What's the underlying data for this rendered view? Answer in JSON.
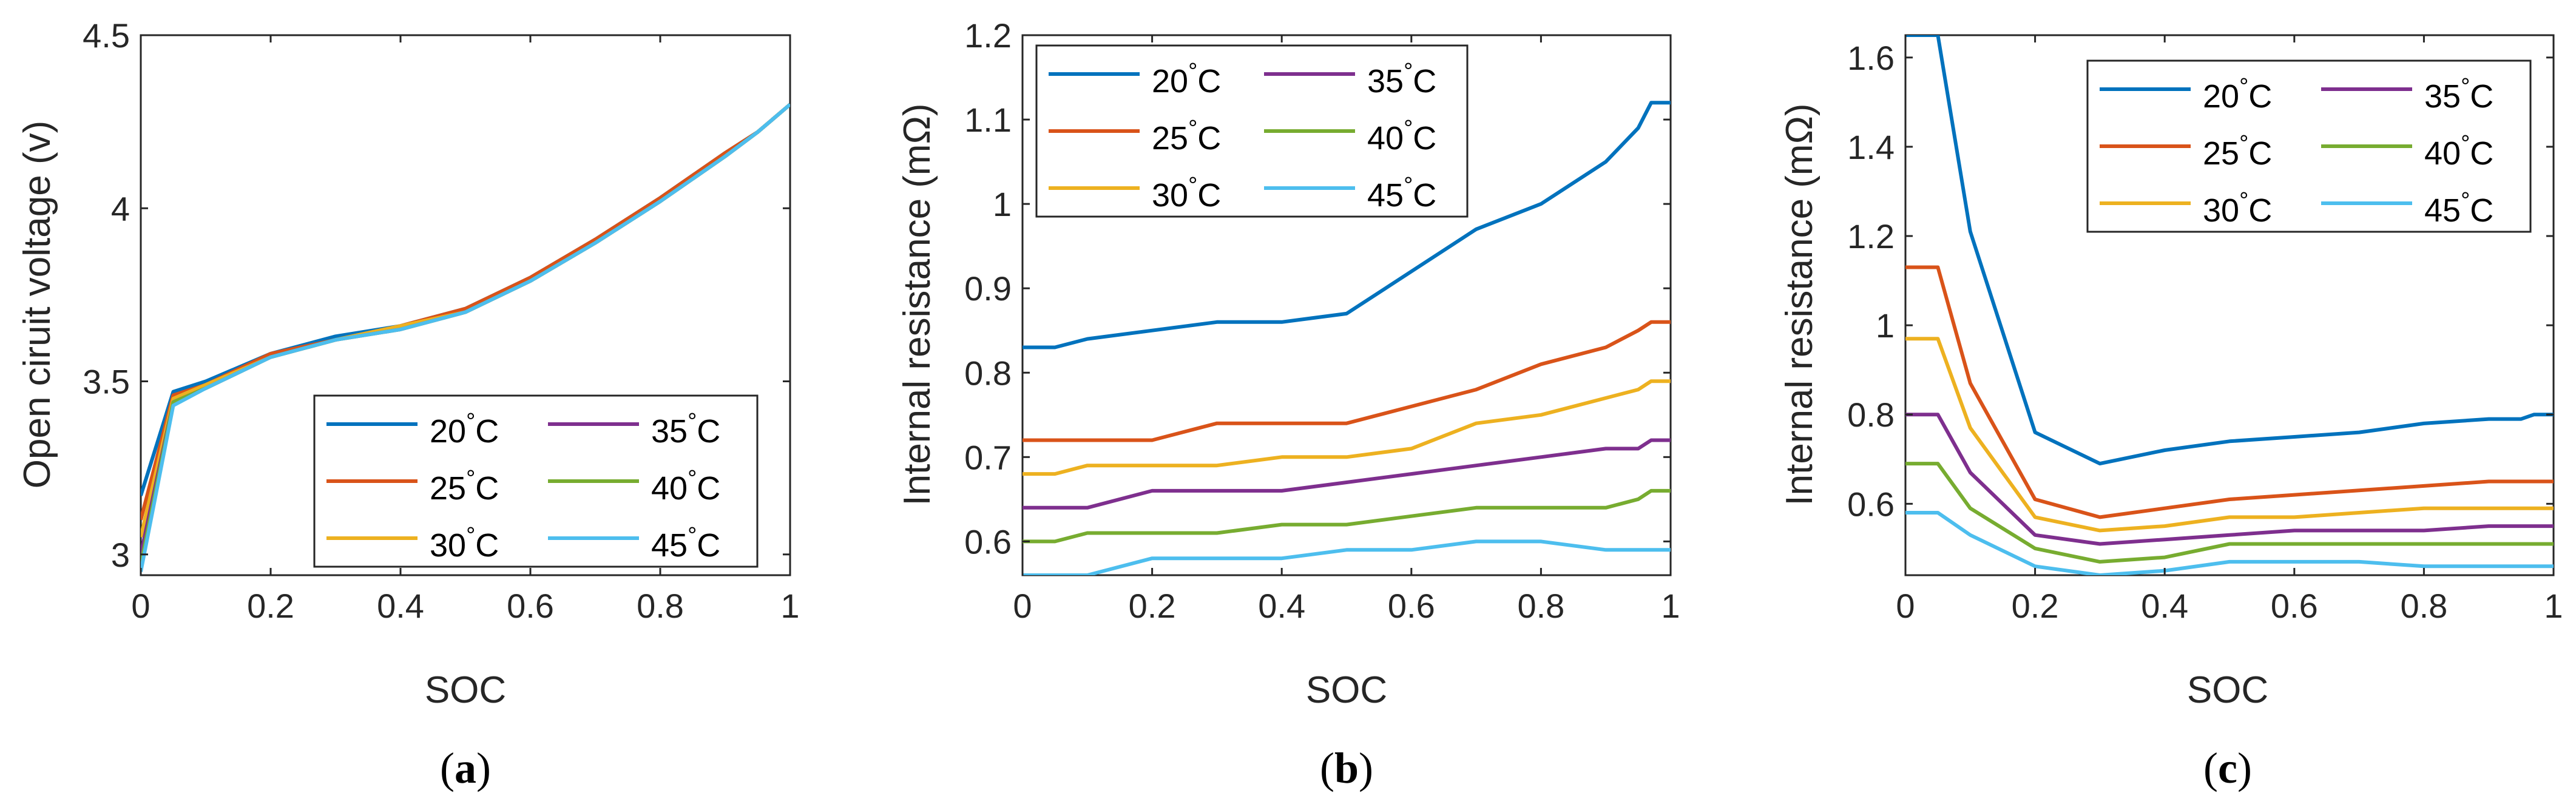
{
  "figure": {
    "caption_open": "(",
    "caption_close": ")",
    "degree_symbol": "°"
  },
  "chart_data": [
    {
      "type": "line",
      "panel": "a",
      "caption": "a",
      "title": "",
      "xlabel": "SOC",
      "ylabel": "Open ciruit voltage (v)",
      "xlim": [
        0,
        1
      ],
      "ylim": [
        2.94,
        4.5
      ],
      "xticks": [
        0,
        0.2,
        0.4,
        0.6,
        0.8,
        1
      ],
      "xtick_labels": [
        "0",
        "0.2",
        "0.4",
        "0.6",
        "0.8",
        "1"
      ],
      "yticks": [
        3,
        3.5,
        4,
        4.5
      ],
      "ytick_labels": [
        "3",
        "3.5",
        "4",
        "4.5"
      ],
      "legend_placement": "bottom-right",
      "series": [
        {
          "name": "20",
          "color": "#0072BD",
          "x": [
            0,
            0.05,
            0.1,
            0.2,
            0.3,
            0.4,
            0.5,
            0.6,
            0.7,
            0.8,
            0.9,
            0.95,
            1
          ],
          "values": [
            3.17,
            3.47,
            3.5,
            3.58,
            3.63,
            3.66,
            3.71,
            3.8,
            3.91,
            4.03,
            4.16,
            4.22,
            4.3
          ]
        },
        {
          "name": "25",
          "color": "#D95319",
          "x": [
            0,
            0.05,
            0.1,
            0.2,
            0.3,
            0.4,
            0.5,
            0.6,
            0.7,
            0.8,
            0.9,
            0.95,
            1
          ],
          "values": [
            3.1,
            3.46,
            3.49,
            3.58,
            3.62,
            3.66,
            3.71,
            3.8,
            3.91,
            4.03,
            4.16,
            4.22,
            4.3
          ]
        },
        {
          "name": "30",
          "color": "#EDB120",
          "x": [
            0,
            0.05,
            0.1,
            0.2,
            0.3,
            0.4,
            0.5,
            0.6,
            0.7,
            0.8,
            0.9,
            0.95,
            1
          ],
          "values": [
            3.05,
            3.45,
            3.49,
            3.57,
            3.62,
            3.66,
            3.7,
            3.79,
            3.9,
            4.02,
            4.15,
            4.22,
            4.3
          ]
        },
        {
          "name": "35",
          "color": "#7E2F8E",
          "x": [
            0,
            0.05,
            0.1,
            0.2,
            0.3,
            0.4,
            0.5,
            0.6,
            0.7,
            0.8,
            0.9,
            0.95,
            1
          ],
          "values": [
            3.0,
            3.44,
            3.48,
            3.57,
            3.62,
            3.65,
            3.7,
            3.79,
            3.9,
            4.02,
            4.15,
            4.22,
            4.3
          ]
        },
        {
          "name": "40",
          "color": "#77AC30",
          "x": [
            0,
            0.05,
            0.1,
            0.2,
            0.3,
            0.4,
            0.5,
            0.6,
            0.7,
            0.8,
            0.9,
            0.95,
            1
          ],
          "values": [
            2.97,
            3.44,
            3.48,
            3.57,
            3.62,
            3.65,
            3.7,
            3.79,
            3.9,
            4.02,
            4.15,
            4.22,
            4.3
          ]
        },
        {
          "name": "45",
          "color": "#4DBEEE",
          "x": [
            0,
            0.05,
            0.1,
            0.2,
            0.3,
            0.4,
            0.5,
            0.6,
            0.7,
            0.8,
            0.9,
            0.95,
            1
          ],
          "values": [
            2.95,
            3.43,
            3.48,
            3.57,
            3.62,
            3.65,
            3.7,
            3.79,
            3.9,
            4.02,
            4.15,
            4.22,
            4.3
          ]
        }
      ]
    },
    {
      "type": "line",
      "panel": "b",
      "caption": "b",
      "title": "",
      "xlabel": "SOC",
      "ylabel": "Internal resistance (mΩ)",
      "xlim": [
        0,
        1
      ],
      "ylim": [
        0.56,
        1.2
      ],
      "xticks": [
        0,
        0.2,
        0.4,
        0.6,
        0.8,
        1
      ],
      "xtick_labels": [
        "0",
        "0.2",
        "0.4",
        "0.6",
        "0.8",
        "1"
      ],
      "yticks": [
        0.6,
        0.7,
        0.8,
        0.9,
        1.0,
        1.1,
        1.2
      ],
      "ytick_labels": [
        "0.6",
        "0.7",
        "0.8",
        "0.9",
        "1",
        "1.1",
        "1.2"
      ],
      "legend_placement": "top-left",
      "series": [
        {
          "name": "20",
          "color": "#0072BD",
          "x": [
            0,
            0.05,
            0.1,
            0.2,
            0.3,
            0.4,
            0.5,
            0.6,
            0.7,
            0.8,
            0.9,
            0.95,
            0.97,
            1
          ],
          "values": [
            0.83,
            0.83,
            0.84,
            0.85,
            0.86,
            0.86,
            0.87,
            0.92,
            0.97,
            1.0,
            1.05,
            1.09,
            1.12,
            1.12
          ]
        },
        {
          "name": "25",
          "color": "#D95319",
          "x": [
            0,
            0.05,
            0.1,
            0.2,
            0.3,
            0.4,
            0.5,
            0.6,
            0.7,
            0.8,
            0.9,
            0.95,
            0.97,
            1
          ],
          "values": [
            0.72,
            0.72,
            0.72,
            0.72,
            0.74,
            0.74,
            0.74,
            0.76,
            0.78,
            0.81,
            0.83,
            0.85,
            0.86,
            0.86
          ]
        },
        {
          "name": "30",
          "color": "#EDB120",
          "x": [
            0,
            0.05,
            0.1,
            0.2,
            0.3,
            0.4,
            0.5,
            0.6,
            0.7,
            0.8,
            0.9,
            0.95,
            0.97,
            1
          ],
          "values": [
            0.68,
            0.68,
            0.69,
            0.69,
            0.69,
            0.7,
            0.7,
            0.71,
            0.74,
            0.75,
            0.77,
            0.78,
            0.79,
            0.79
          ]
        },
        {
          "name": "35",
          "color": "#7E2F8E",
          "x": [
            0,
            0.05,
            0.1,
            0.2,
            0.3,
            0.4,
            0.5,
            0.6,
            0.7,
            0.8,
            0.9,
            0.95,
            0.97,
            1
          ],
          "values": [
            0.64,
            0.64,
            0.64,
            0.66,
            0.66,
            0.66,
            0.67,
            0.68,
            0.69,
            0.7,
            0.71,
            0.71,
            0.72,
            0.72
          ]
        },
        {
          "name": "40",
          "color": "#77AC30",
          "x": [
            0,
            0.05,
            0.1,
            0.2,
            0.3,
            0.4,
            0.5,
            0.6,
            0.7,
            0.8,
            0.9,
            0.95,
            0.97,
            1
          ],
          "values": [
            0.6,
            0.6,
            0.61,
            0.61,
            0.61,
            0.62,
            0.62,
            0.63,
            0.64,
            0.64,
            0.64,
            0.65,
            0.66,
            0.66
          ]
        },
        {
          "name": "45",
          "color": "#4DBEEE",
          "x": [
            0,
            0.05,
            0.1,
            0.2,
            0.3,
            0.4,
            0.5,
            0.6,
            0.7,
            0.8,
            0.9,
            0.95,
            0.97,
            1
          ],
          "values": [
            0.56,
            0.56,
            0.56,
            0.58,
            0.58,
            0.58,
            0.59,
            0.59,
            0.6,
            0.6,
            0.59,
            0.59,
            0.59,
            0.59
          ]
        }
      ]
    },
    {
      "type": "line",
      "panel": "c",
      "caption": "c",
      "title": "",
      "xlabel": "SOC",
      "ylabel": "Internal resistance (mΩ)",
      "xlim": [
        0,
        1
      ],
      "ylim": [
        0.44,
        1.65
      ],
      "xticks": [
        0,
        0.2,
        0.4,
        0.6,
        0.8,
        1
      ],
      "xtick_labels": [
        "0",
        "0.2",
        "0.4",
        "0.6",
        "0.8",
        "1"
      ],
      "yticks": [
        0.6,
        0.8,
        1.0,
        1.2,
        1.4,
        1.6
      ],
      "ytick_labels": [
        "0.6",
        "0.8",
        "1",
        "1.2",
        "1.4",
        "1.6"
      ],
      "legend_placement": "top-right",
      "series": [
        {
          "name": "20",
          "color": "#0072BD",
          "x": [
            0,
            0.05,
            0.1,
            0.2,
            0.3,
            0.4,
            0.5,
            0.6,
            0.7,
            0.8,
            0.9,
            0.95,
            0.97,
            1
          ],
          "values": [
            1.65,
            1.65,
            1.21,
            0.76,
            0.69,
            0.72,
            0.74,
            0.75,
            0.76,
            0.78,
            0.79,
            0.79,
            0.8,
            0.8
          ]
        },
        {
          "name": "25",
          "color": "#D95319",
          "x": [
            0,
            0.05,
            0.1,
            0.2,
            0.3,
            0.4,
            0.5,
            0.6,
            0.7,
            0.8,
            0.9,
            0.95,
            0.97,
            1
          ],
          "values": [
            1.13,
            1.13,
            0.87,
            0.61,
            0.57,
            0.59,
            0.61,
            0.62,
            0.63,
            0.64,
            0.65,
            0.65,
            0.65,
            0.65
          ]
        },
        {
          "name": "30",
          "color": "#EDB120",
          "x": [
            0,
            0.05,
            0.1,
            0.2,
            0.3,
            0.4,
            0.5,
            0.6,
            0.7,
            0.8,
            0.9,
            0.95,
            0.97,
            1
          ],
          "values": [
            0.97,
            0.97,
            0.77,
            0.57,
            0.54,
            0.55,
            0.57,
            0.57,
            0.58,
            0.59,
            0.59,
            0.59,
            0.59,
            0.59
          ]
        },
        {
          "name": "35",
          "color": "#7E2F8E",
          "x": [
            0,
            0.05,
            0.1,
            0.2,
            0.3,
            0.4,
            0.5,
            0.6,
            0.7,
            0.8,
            0.9,
            0.95,
            0.97,
            1
          ],
          "values": [
            0.8,
            0.8,
            0.67,
            0.53,
            0.51,
            0.52,
            0.53,
            0.54,
            0.54,
            0.54,
            0.55,
            0.55,
            0.55,
            0.55
          ]
        },
        {
          "name": "40",
          "color": "#77AC30",
          "x": [
            0,
            0.05,
            0.1,
            0.2,
            0.3,
            0.4,
            0.5,
            0.6,
            0.7,
            0.8,
            0.9,
            0.95,
            0.97,
            1
          ],
          "values": [
            0.69,
            0.69,
            0.59,
            0.5,
            0.47,
            0.48,
            0.51,
            0.51,
            0.51,
            0.51,
            0.51,
            0.51,
            0.51,
            0.51
          ]
        },
        {
          "name": "45",
          "color": "#4DBEEE",
          "x": [
            0,
            0.05,
            0.1,
            0.2,
            0.3,
            0.4,
            0.5,
            0.6,
            0.7,
            0.8,
            0.9,
            0.95,
            0.97,
            1
          ],
          "values": [
            0.58,
            0.58,
            0.53,
            0.46,
            0.44,
            0.45,
            0.47,
            0.47,
            0.47,
            0.46,
            0.46,
            0.46,
            0.46,
            0.46
          ]
        }
      ]
    }
  ]
}
